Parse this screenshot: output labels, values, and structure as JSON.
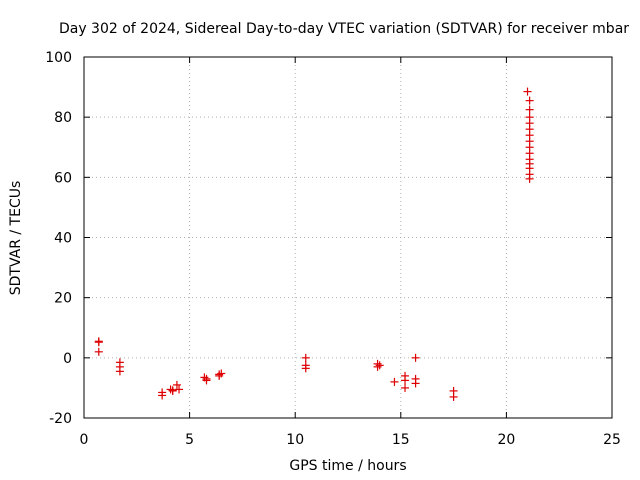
{
  "chart_data": {
    "type": "scatter",
    "title": "Day 302 of 2024, Sidereal Day-to-day VTEC variation (SDTVAR) for receiver mbar",
    "xlabel": "GPS time / hours",
    "ylabel": "SDTVAR / TECUs",
    "xlim": [
      0,
      25
    ],
    "ylim": [
      -20,
      100
    ],
    "xticks": [
      0,
      5,
      10,
      15,
      20,
      25
    ],
    "yticks": [
      -20,
      0,
      20,
      40,
      60,
      80,
      100
    ],
    "grid": true,
    "marker": "plus",
    "color": "#dd0000",
    "series": [
      {
        "name": "SDTVAR",
        "points": [
          [
            0.7,
            5.5
          ],
          [
            0.7,
            5.2
          ],
          [
            0.7,
            2.0
          ],
          [
            1.7,
            -1.5
          ],
          [
            1.7,
            -3.0
          ],
          [
            1.7,
            -4.5
          ],
          [
            3.7,
            -11.5
          ],
          [
            3.7,
            -12.5
          ],
          [
            4.1,
            -10.5
          ],
          [
            4.2,
            -11.0
          ],
          [
            4.2,
            -10.8
          ],
          [
            4.4,
            -9.0
          ],
          [
            4.5,
            -10.5
          ],
          [
            5.7,
            -6.5
          ],
          [
            5.8,
            -7.0
          ],
          [
            5.8,
            -7.5
          ],
          [
            6.4,
            -5.5
          ],
          [
            6.4,
            -6.0
          ],
          [
            6.5,
            -5.2
          ],
          [
            10.5,
            0.0
          ],
          [
            10.5,
            -2.5
          ],
          [
            10.5,
            -3.5
          ],
          [
            13.9,
            -2.0
          ],
          [
            13.9,
            -3.0
          ],
          [
            14.0,
            -2.5
          ],
          [
            14.7,
            -8.0
          ],
          [
            15.2,
            -6.0
          ],
          [
            15.2,
            -7.5
          ],
          [
            15.2,
            -10.0
          ],
          [
            15.7,
            0.0
          ],
          [
            15.7,
            -7.0
          ],
          [
            15.7,
            -8.5
          ],
          [
            17.5,
            -11.0
          ],
          [
            17.5,
            -13.0
          ],
          [
            21.0,
            88.5
          ],
          [
            21.1,
            85.5
          ],
          [
            21.1,
            82.5
          ],
          [
            21.1,
            80.0
          ],
          [
            21.1,
            78.0
          ],
          [
            21.1,
            76.0
          ],
          [
            21.1,
            74.0
          ],
          [
            21.1,
            72.0
          ],
          [
            21.1,
            70.0
          ],
          [
            21.1,
            68.0
          ],
          [
            21.1,
            66.0
          ],
          [
            21.1,
            64.5
          ],
          [
            21.1,
            63.0
          ],
          [
            21.1,
            61.0
          ],
          [
            21.1,
            59.5
          ]
        ]
      }
    ]
  }
}
